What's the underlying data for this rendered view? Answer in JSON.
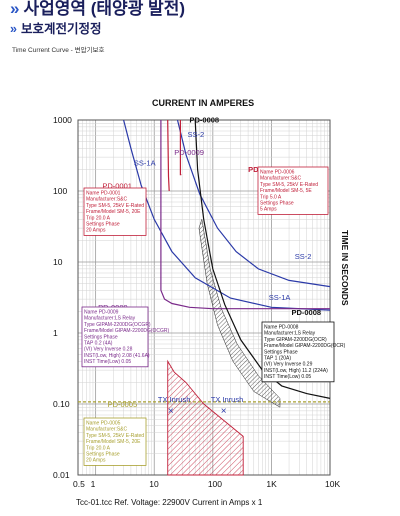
{
  "header": {
    "page_heading": "사업영역 (태양광 발전)",
    "section_title": "보호계전기정정",
    "subtitle": "Time Current Curve - 변압기보호"
  },
  "chart_data": {
    "type": "line",
    "title": "CURRENT IN AMPERES",
    "xlabel": "Tcc-01.tcc   Ref. Voltage: 22900V   Current in Amps x 1",
    "ylabel": "TIME IN SECONDS",
    "xscale": "log",
    "yscale": "log",
    "xlim": [
      0.5,
      10000
    ],
    "ylim": [
      0.01,
      1000
    ],
    "x_ticks": [
      "0.5",
      "1",
      "10",
      "100",
      "1K",
      "10K"
    ],
    "y_ticks": [
      "1000",
      "100",
      "10",
      "1",
      "0.10",
      "0.01"
    ],
    "grid": true,
    "series": [
      {
        "name": "SS-1A",
        "color": "#2b3aa8",
        "points": [
          [
            3,
            1000
          ],
          [
            4,
            400
          ],
          [
            6,
            120
          ],
          [
            10,
            40
          ],
          [
            20,
            14
          ],
          [
            50,
            6
          ],
          [
            200,
            3.1
          ],
          [
            1000,
            2.3
          ],
          [
            10000,
            2.1
          ]
        ]
      },
      {
        "name": "SS-2",
        "color": "#2b3aa8",
        "points": [
          [
            25,
            1000
          ],
          [
            35,
            320
          ],
          [
            60,
            90
          ],
          [
            120,
            30
          ],
          [
            250,
            14
          ],
          [
            600,
            8
          ],
          [
            2000,
            5.5
          ],
          [
            10000,
            4.5
          ]
        ]
      },
      {
        "name": "PD-0009",
        "color": "#7a2a8a",
        "points": [
          [
            13,
            1000
          ],
          [
            13,
            4
          ],
          [
            15,
            3
          ],
          [
            20,
            2.6
          ],
          [
            40,
            2.3
          ],
          [
            100,
            2.2
          ],
          [
            10000,
            2.2
          ]
        ]
      },
      {
        "name": "PD-0001",
        "color": "#c0203a",
        "points": [
          [
            17,
            1000
          ],
          [
            17.5,
            160
          ],
          [
            18,
            100
          ]
        ]
      },
      {
        "name": "PD-0006",
        "color": "#c0203a",
        "points": [
          [
            28,
            1000
          ],
          [
            28,
            170
          ],
          [
            29,
            170
          ]
        ]
      },
      {
        "name": "PD-0008",
        "color": "#111111",
        "points": [
          [
            50,
            1000
          ],
          [
            55,
            200
          ],
          [
            70,
            40
          ],
          [
            100,
            8
          ],
          [
            160,
            2.5
          ],
          [
            300,
            0.8
          ],
          [
            700,
            0.3
          ],
          [
            1500,
            0.18
          ],
          [
            4000,
            0.14
          ],
          [
            10000,
            0.12
          ]
        ]
      },
      {
        "name": "PD-0005",
        "color": "#a8a030",
        "points": [
          [
            0.5,
            0.107
          ],
          [
            10000,
            0.107
          ]
        ]
      }
    ],
    "annotations": [
      {
        "label": "PD-0006",
        "color": "#c0203a",
        "lines": [
          "Name PD-0006",
          "Manufacturer:S&C",
          "Type SM-5, 25kV E-Rated",
          "Frame/Model SM-5, 5E",
          "Trip 5.0 A",
          "Settings Phase",
          "5 Amps"
        ]
      },
      {
        "label": "PD-0001",
        "color": "#c0203a",
        "lines": [
          "Name PD-0001",
          "Manufacturer:S&C",
          "Type SM-5, 25kV E-Rated",
          "Frame/Model SM-5, 20E",
          "Trip 20.0 A",
          "Settings Phase",
          "20 Amps"
        ]
      },
      {
        "label": "PD-0009",
        "color": "#7a2a8a",
        "lines": [
          "Name PD-0009",
          "Manufacturer:LS Relay",
          "Type GIPAM-2200DG(OCGR)",
          "Frame/Model GIPAM-2200DG(OCGR)",
          "Settings Phase",
          "TAP 0.2 (4A)",
          "(VI) Very Inverse 0.28",
          "INST(Low, High) 2.08 (41.6A)",
          "INST Time(Low) 0.05"
        ]
      },
      {
        "label": "PD-0008",
        "color": "#111111",
        "lines": [
          "Name PD-0008",
          "Manufacturer:LS Relay",
          "Type GIPAM-2200DG(OCR)",
          "Frame/Model GIPAM-2200DG(OCR)",
          "Settings Phase",
          "TAP 1 (20A)",
          "(VI) Very Inverse 0.29",
          "INST(Low, High) 11.2 (224A)",
          "INST Time(Low) 0.05"
        ]
      },
      {
        "label": "PD-0005",
        "color": "#a8a030",
        "lines": [
          "Name PD-0005",
          "Manufacturer:S&C",
          "Type SM-5, 25kV E-Rated",
          "Frame/Model SM-5, 20E",
          "Trip 20.0 A",
          "Settings Phase",
          "20 Amps"
        ]
      }
    ],
    "markers": [
      {
        "label": "TX Inrush",
        "x": 20,
        "y": 0.1
      },
      {
        "label": "TX Inrush",
        "x": 160,
        "y": 0.1
      }
    ],
    "curve_labels": [
      {
        "text": "PD-0008",
        "x": 40,
        "y": 920
      },
      {
        "text": "SS-2",
        "x": 37,
        "y": 580
      },
      {
        "text": "PD-0009",
        "x": 22,
        "y": 320
      },
      {
        "text": "SS-1A",
        "x": 4.5,
        "y": 230
      },
      {
        "text": "PD-0006",
        "x": 400,
        "y": 185
      },
      {
        "text": "PD-0001",
        "x": 1.3,
        "y": 108
      },
      {
        "text": "SS-2",
        "x": 2500,
        "y": 11
      },
      {
        "text": "SS-1A",
        "x": 900,
        "y": 2.9
      },
      {
        "text": "PD-0009",
        "x": 1.1,
        "y": 2.1
      },
      {
        "text": "PD-0008",
        "x": 2200,
        "y": 1.8
      },
      {
        "text": "PD-0005",
        "x": 1.6,
        "y": 0.09
      }
    ]
  },
  "colors": {
    "heading": "#1a1f5c",
    "accent": "#2a56c6",
    "grid": "#c8c8c8",
    "red": "#c0203a",
    "purple": "#7a2a8a",
    "blue": "#2b3aa8",
    "olive": "#a8a030"
  }
}
